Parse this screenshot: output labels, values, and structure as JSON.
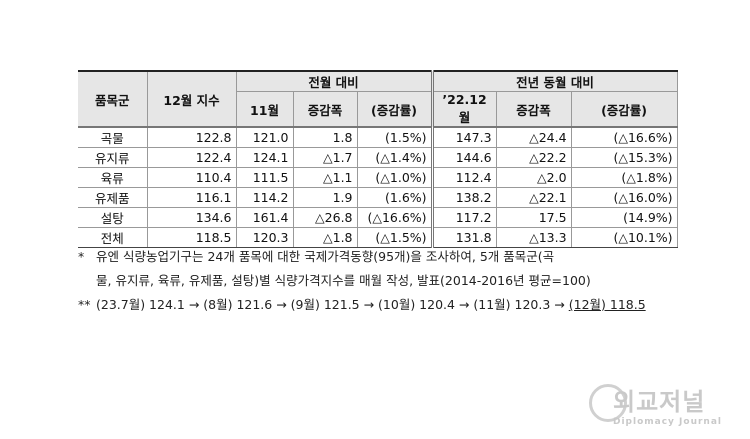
{
  "table": {
    "header": {
      "group": "품목군",
      "index": "12월 지수",
      "mom": "전월 대비",
      "yoy": "전년 동월 대비",
      "sub": [
        "11월",
        "증감폭",
        "(증감률)",
        "’22.12월",
        "증감폭",
        "(증감률)"
      ]
    },
    "rows": [
      [
        "곡물",
        "122.8",
        "121.0",
        "1.8",
        "(1.5%)",
        "147.3",
        "△24.4",
        "(△16.6%)"
      ],
      [
        "유지류",
        "122.4",
        "124.1",
        "△1.7",
        "(△1.4%)",
        "144.6",
        "△22.2",
        "(△15.3%)"
      ],
      [
        "육류",
        "110.4",
        "111.5",
        "△1.1",
        "(△1.0%)",
        "112.4",
        "△2.0",
        "(△1.8%)"
      ],
      [
        "유제품",
        "116.1",
        "114.2",
        "1.9",
        "(1.6%)",
        "138.2",
        "△22.1",
        "(△16.0%)"
      ],
      [
        "설탕",
        "134.6",
        "161.4",
        "△26.8",
        "(△16.6%)",
        "117.2",
        "17.5",
        "(14.9%)"
      ],
      [
        "전체",
        "118.5",
        "120.3",
        "△1.8",
        "(△1.5%)",
        "131.8",
        "△13.3",
        "(△10.1%)"
      ]
    ]
  },
  "notes": [
    {
      "mark": "*",
      "lines": [
        "유엔 식량농업기구는 24개 품목에 대한 국제가격동향(95개)을 조사하여, 5개 품목군(곡",
        "물, 유지류, 육류, 유제품, 설탕)별 식량가격지수를 매월 작성, 발표(2014-2016년 평균=100)"
      ]
    },
    {
      "mark": "**",
      "text": "(23.7월) 124.1 → (8월) 121.6 → (9월) 121.5 → (10월) 120.4 → (11월) 120.3 →",
      "underlined": "(12월) 118.5"
    }
  ],
  "watermark": {
    "title": "외교저널",
    "subtitle": "Diplomacy Journal"
  }
}
